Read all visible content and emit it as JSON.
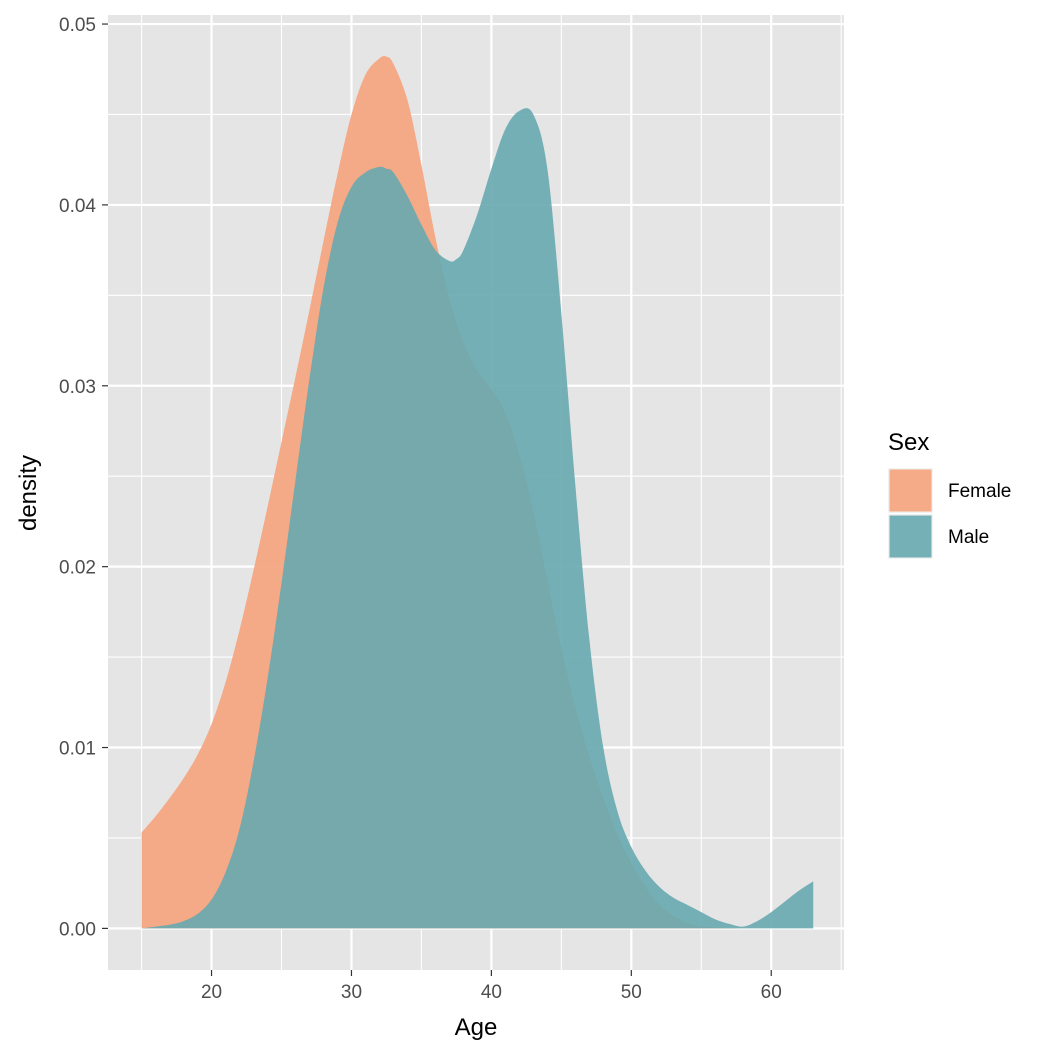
{
  "chart_data": {
    "type": "area",
    "subtype": "density",
    "xlabel": "Age",
    "ylabel": "density",
    "xlim": [
      12.6,
      65.2
    ],
    "ylim": [
      -0.0023,
      0.0505
    ],
    "x_ticks": [
      20,
      30,
      40,
      50,
      60
    ],
    "x_tick_labels": [
      "20",
      "30",
      "40",
      "50",
      "60"
    ],
    "y_ticks": [
      0.0,
      0.01,
      0.02,
      0.03,
      0.04,
      0.05
    ],
    "y_tick_labels": [
      "0.00",
      "0.01",
      "0.02",
      "0.03",
      "0.04",
      "0.05"
    ],
    "grid": true,
    "legend": {
      "title": "Sex",
      "position": "right"
    },
    "colors": {
      "panel": "#e5e5e5",
      "grid": "#ffffff"
    },
    "series": [
      {
        "name": "Female",
        "color": "#f4a582",
        "opacity": 0.95,
        "x": [
          15,
          16,
          17,
          18,
          19,
          20,
          21,
          22,
          23,
          24,
          25,
          26,
          27,
          28,
          29,
          30,
          31,
          32,
          32.5,
          33,
          34,
          35,
          36,
          37,
          38,
          39,
          40,
          41,
          42,
          43,
          44,
          45,
          46,
          47,
          48,
          49,
          50,
          51,
          52,
          53,
          54,
          55,
          56,
          57,
          58
        ],
        "y": [
          0.0053,
          0.0062,
          0.0072,
          0.0083,
          0.0096,
          0.0113,
          0.0136,
          0.0165,
          0.0198,
          0.0233,
          0.0269,
          0.0305,
          0.0342,
          0.038,
          0.0417,
          0.045,
          0.0472,
          0.0481,
          0.0482,
          0.0478,
          0.0458,
          0.0422,
          0.0382,
          0.0348,
          0.0324,
          0.0308,
          0.0298,
          0.0285,
          0.0262,
          0.023,
          0.0192,
          0.0155,
          0.0122,
          0.0095,
          0.0072,
          0.0052,
          0.0036,
          0.0023,
          0.0013,
          0.0007,
          0.0003,
          0.0001,
          5e-05,
          2e-05,
          0.0
        ]
      },
      {
        "name": "Male",
        "color": "#67a9af",
        "opacity": 0.9,
        "x": [
          15,
          16,
          17,
          18,
          19,
          20,
          21,
          22,
          23,
          24,
          25,
          26,
          27,
          28,
          29,
          30,
          31,
          32,
          32.5,
          33,
          34,
          35,
          36,
          37,
          37.5,
          38,
          39,
          40,
          41,
          42,
          43,
          44,
          45,
          46,
          47,
          48,
          49,
          50,
          51,
          52,
          53,
          54,
          55,
          56,
          57,
          58,
          59,
          60,
          61,
          62,
          63
        ],
        "y": [
          0.0,
          0.0001,
          0.0002,
          0.0004,
          0.0008,
          0.0016,
          0.0031,
          0.0055,
          0.0092,
          0.0138,
          0.0191,
          0.0248,
          0.0304,
          0.0354,
          0.039,
          0.041,
          0.0418,
          0.0421,
          0.042,
          0.0418,
          0.0405,
          0.0389,
          0.0375,
          0.0369,
          0.037,
          0.0375,
          0.0395,
          0.042,
          0.0442,
          0.0452,
          0.045,
          0.042,
          0.034,
          0.0245,
          0.016,
          0.01,
          0.0065,
          0.0045,
          0.0032,
          0.0023,
          0.0017,
          0.0013,
          0.0009,
          0.0005,
          0.00025,
          0.0001,
          0.0004,
          0.0009,
          0.0015,
          0.0021,
          0.0026
        ]
      }
    ]
  }
}
